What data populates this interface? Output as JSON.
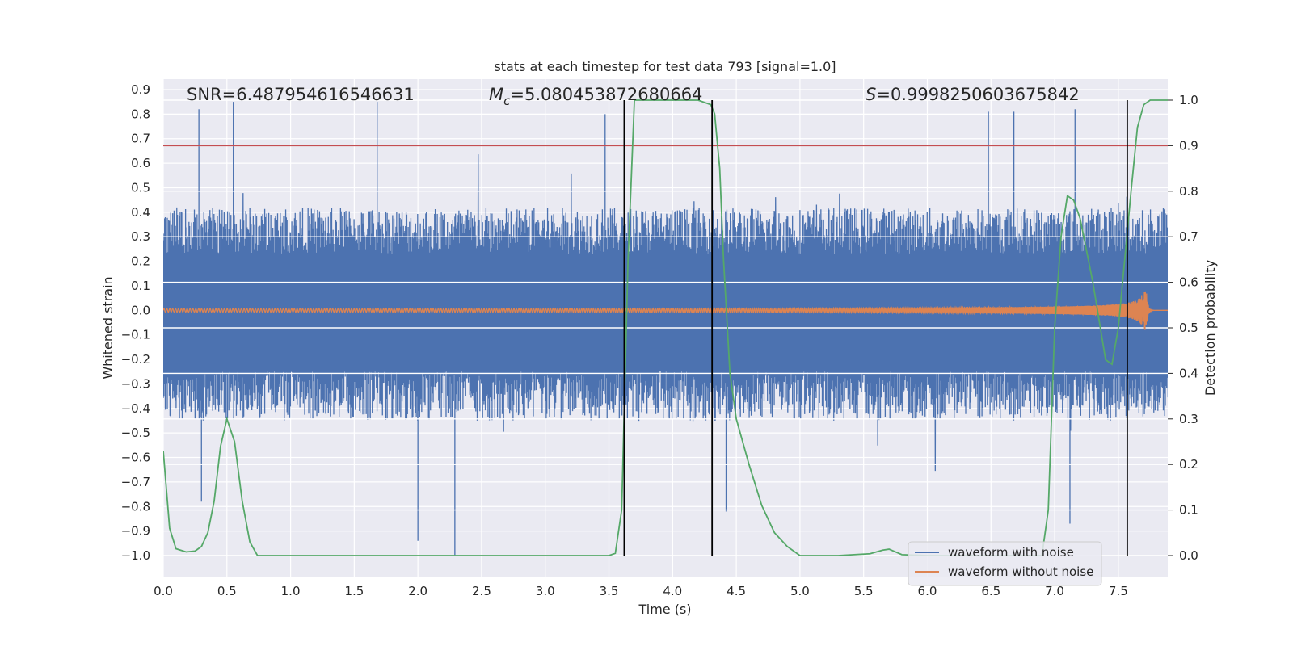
{
  "chart_data": {
    "type": "line",
    "title": "stats at each timestep for test data 793 [signal=1.0]",
    "xlabel": "Time (s)",
    "ylabel": "Whitened strain",
    "y2label": "Detection probability",
    "xlim": [
      0.0,
      8.0
    ],
    "ylim": [
      -1.0,
      0.9
    ],
    "y2lim": [
      0.0,
      1.0
    ],
    "xticks": [
      "0.0",
      "0.5",
      "1.0",
      "1.5",
      "2.0",
      "2.5",
      "3.0",
      "3.5",
      "4.0",
      "4.5",
      "5.0",
      "5.5",
      "6.0",
      "6.5",
      "7.0",
      "7.5"
    ],
    "yticks": [
      "0.9",
      "0.8",
      "0.7",
      "0.6",
      "0.5",
      "0.4",
      "0.3",
      "0.2",
      "0.1",
      "0.0",
      "−0.1",
      "−0.2",
      "−0.3",
      "−0.4",
      "−0.5",
      "−0.6",
      "−0.7",
      "−0.8",
      "−0.9",
      "−1.0"
    ],
    "y2ticks": [
      "1.0",
      "0.9",
      "0.8",
      "0.7",
      "0.6",
      "0.5",
      "0.4",
      "0.3",
      "0.2",
      "0.1",
      "0.0"
    ],
    "grid": true,
    "legend_position": "lower-right",
    "annotations": {
      "snr_label": "SNR=6.487954616546631",
      "mc_symbol": "M",
      "mc_subscript": "c",
      "mc_value": "=5.080453872680664",
      "s_symbol": "S",
      "s_value": "=0.9998250603675842"
    },
    "threshold": {
      "axis": "right",
      "value": 0.9,
      "color": "#c44e52"
    },
    "vertical_markers": [
      3.62,
      4.31,
      7.57
    ],
    "series": [
      {
        "name": "waveform with noise",
        "axis": "left",
        "color": "#4c72b0",
        "kind": "noise",
        "typical_range": [
          -0.45,
          0.42
        ],
        "peaks": [
          [
            0.28,
            0.82
          ],
          [
            0.55,
            0.85
          ],
          [
            1.68,
            0.85
          ],
          [
            3.47,
            0.8
          ],
          [
            6.48,
            0.81
          ],
          [
            6.68,
            0.81
          ],
          [
            7.16,
            0.82
          ],
          [
            0.3,
            -0.78
          ],
          [
            2.0,
            -0.94
          ],
          [
            2.29,
            -1.0
          ],
          [
            4.42,
            -0.82
          ],
          [
            7.12,
            -0.87
          ]
        ]
      },
      {
        "name": "waveform without noise",
        "axis": "left",
        "color": "#dd8452",
        "kind": "chirp",
        "merger_time": 7.72,
        "peak_amplitude": 0.025,
        "max_amplitude": 0.08
      },
      {
        "name": "Detection probability",
        "axis": "right",
        "color": "#55a868",
        "x": [
          0.0,
          0.05,
          0.1,
          0.18,
          0.25,
          0.3,
          0.35,
          0.4,
          0.45,
          0.5,
          0.56,
          0.62,
          0.68,
          0.74,
          0.8,
          1.0,
          2.0,
          3.0,
          3.5,
          3.55,
          3.6,
          3.65,
          3.7,
          3.75,
          4.0,
          4.2,
          4.3,
          4.33,
          4.37,
          4.4,
          4.45,
          4.5,
          4.6,
          4.7,
          4.8,
          4.9,
          5.0,
          5.3,
          5.55,
          5.65,
          5.7,
          5.8,
          6.0,
          6.9,
          6.95,
          7.0,
          7.05,
          7.1,
          7.15,
          7.2,
          7.3,
          7.4,
          7.45,
          7.5,
          7.55,
          7.6,
          7.65,
          7.7,
          7.75,
          7.85,
          7.95
        ],
        "y": [
          0.23,
          0.06,
          0.015,
          0.008,
          0.01,
          0.02,
          0.05,
          0.12,
          0.24,
          0.3,
          0.25,
          0.12,
          0.03,
          0.0,
          0.0,
          0.0,
          0.0,
          0.0,
          0.0,
          0.005,
          0.1,
          0.65,
          1.0,
          1.0,
          1.0,
          1.0,
          0.99,
          0.97,
          0.85,
          0.65,
          0.4,
          0.3,
          0.2,
          0.11,
          0.05,
          0.02,
          0.0,
          0.0,
          0.004,
          0.012,
          0.014,
          0.002,
          0.0,
          0.0,
          0.1,
          0.5,
          0.7,
          0.79,
          0.78,
          0.74,
          0.6,
          0.43,
          0.42,
          0.5,
          0.65,
          0.8,
          0.94,
          0.99,
          1.0,
          1.0,
          1.0
        ]
      }
    ]
  }
}
